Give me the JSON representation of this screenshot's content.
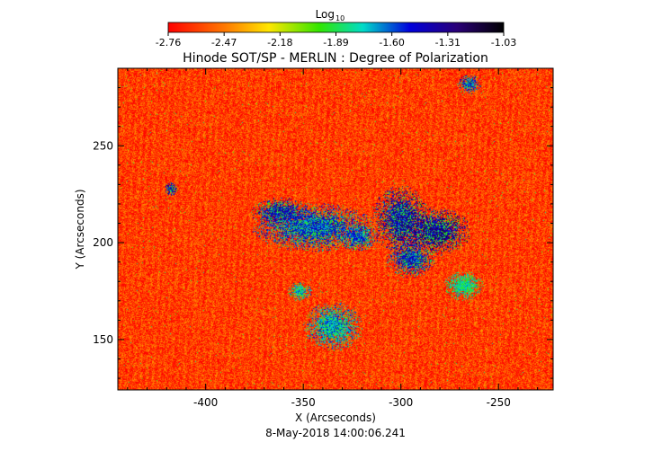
{
  "colorbar": {
    "title_base": "Log",
    "title_sub": "10",
    "ticks": [
      "-2.76",
      "-2.47",
      "-2.18",
      "-1.89",
      "-1.60",
      "-1.31",
      "-1.03"
    ],
    "range": [
      -2.76,
      -1.03
    ]
  },
  "chart_data": {
    "type": "heatmap",
    "title": "Hinode SOT/SP - MERLIN : Degree of Polarization",
    "xlabel": "X (Arcseconds)",
    "ylabel": "Y (Arcseconds)",
    "footer": "8-May-2018 14:00:06.241",
    "xlim": [
      -445,
      -222
    ],
    "ylim": [
      124,
      290
    ],
    "xticks": [
      -400,
      -350,
      -300,
      -250
    ],
    "yticks": [
      150,
      200,
      250
    ],
    "xtick_labels": [
      "-400",
      "-350",
      "-300",
      "-250"
    ],
    "ytick_labels": [
      "150",
      "200",
      "250"
    ],
    "value_range": [
      -2.76,
      -1.03
    ],
    "background_level": -2.7,
    "features": [
      {
        "x": -345,
        "y": 208,
        "rx": 25,
        "ry": 10,
        "level": -1.4
      },
      {
        "x": -362,
        "y": 216,
        "rx": 12,
        "ry": 6,
        "level": -1.3
      },
      {
        "x": -322,
        "y": 203,
        "rx": 8,
        "ry": 6,
        "level": -1.45
      },
      {
        "x": -300,
        "y": 212,
        "rx": 12,
        "ry": 14,
        "level": -1.25
      },
      {
        "x": -282,
        "y": 206,
        "rx": 14,
        "ry": 10,
        "level": -1.2
      },
      {
        "x": -295,
        "y": 192,
        "rx": 10,
        "ry": 8,
        "level": -1.35
      },
      {
        "x": -268,
        "y": 178,
        "rx": 8,
        "ry": 6,
        "level": -1.7
      },
      {
        "x": -335,
        "y": 157,
        "rx": 12,
        "ry": 10,
        "level": -1.55
      },
      {
        "x": -418,
        "y": 228,
        "rx": 3,
        "ry": 3,
        "level": -1.3
      },
      {
        "x": -265,
        "y": 282,
        "rx": 5,
        "ry": 4,
        "level": -1.4
      },
      {
        "x": -352,
        "y": 175,
        "rx": 5,
        "ry": 4,
        "level": -1.6
      }
    ]
  }
}
